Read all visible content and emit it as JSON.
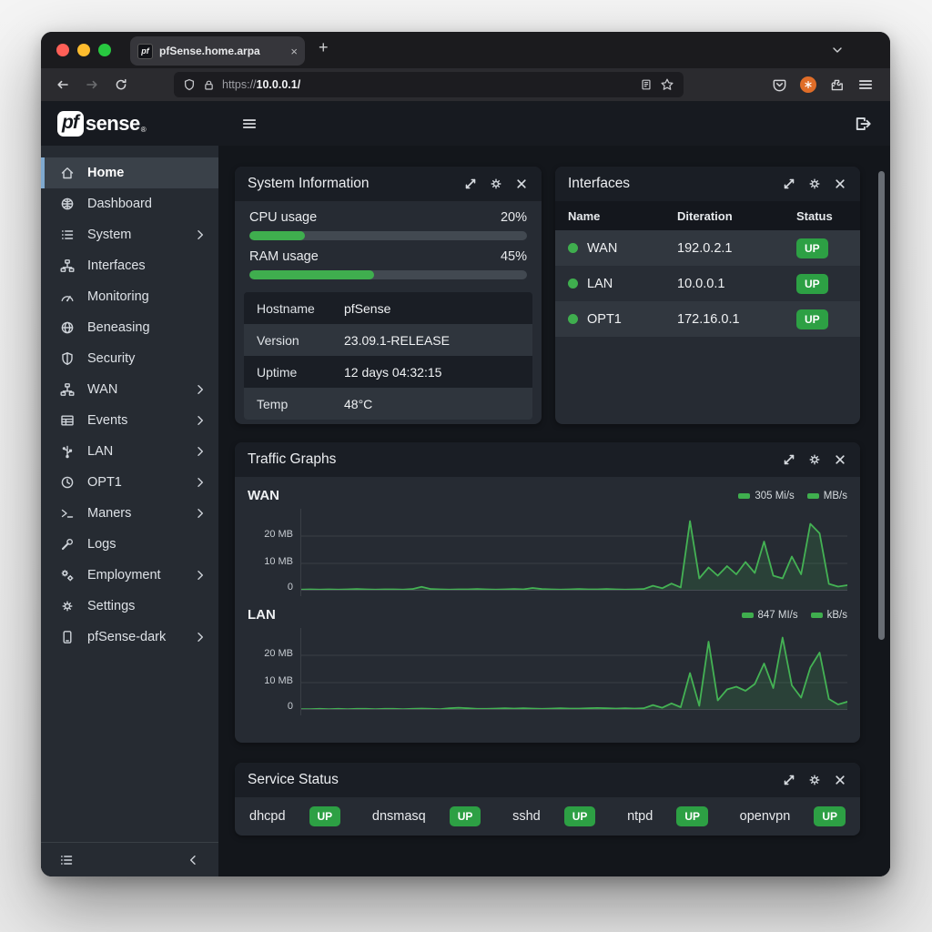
{
  "browser": {
    "tab": {
      "favicon_text": "pf",
      "title": "pfSense.home.arpa",
      "close": "×"
    },
    "new_tab": "+",
    "url": {
      "scheme": "https://",
      "host": "10.0.0.1/"
    },
    "colors": {
      "traffic_red": "#ff5f57",
      "traffic_yellow": "#febc2e",
      "traffic_green": "#28c840",
      "extension_badge": "#e06d28"
    }
  },
  "app": {
    "logo": {
      "pf": "pf",
      "rest": "sense",
      "reg": "®"
    }
  },
  "sidebar": {
    "items": [
      {
        "label": "Home",
        "icon": "home",
        "chevron": false,
        "active": true
      },
      {
        "label": "Dashboard",
        "icon": "dashboard",
        "chevron": false
      },
      {
        "label": "System",
        "icon": "system-list",
        "chevron": true
      },
      {
        "label": "Interfaces",
        "icon": "sitemap",
        "chevron": false
      },
      {
        "label": "Monitoring",
        "icon": "monitoring",
        "chevron": false
      },
      {
        "label": "Beneasing",
        "icon": "globe",
        "chevron": false
      },
      {
        "label": "Security",
        "icon": "shield",
        "chevron": false
      },
      {
        "label": "WAN",
        "icon": "sitemap",
        "chevron": true
      },
      {
        "label": "Events",
        "icon": "table",
        "chevron": true
      },
      {
        "label": "LAN",
        "icon": "usb",
        "chevron": true
      },
      {
        "label": "OPT1",
        "icon": "clock",
        "chevron": true
      },
      {
        "label": "Maners",
        "icon": "terminal",
        "chevron": true
      },
      {
        "label": "Logs",
        "icon": "wrench",
        "chevron": false
      },
      {
        "label": "Employment",
        "icon": "gears",
        "chevron": true
      },
      {
        "label": "Settings",
        "icon": "gear",
        "chevron": false
      },
      {
        "label": "pfSense-dark",
        "icon": "mobile",
        "chevron": true
      }
    ]
  },
  "panels": {
    "system_information": {
      "title": "System Information",
      "metrics": [
        {
          "label": "CPU usage",
          "value": "20%",
          "pct": 20
        },
        {
          "label": "RAM usage",
          "value": "45%",
          "pct": 45
        }
      ],
      "table": [
        {
          "label": "Hostname",
          "value": "pfSense"
        },
        {
          "label": "Version",
          "value": "23.09.1-RELEASE"
        },
        {
          "label": "Uptime",
          "value": "12 days 04:32:15"
        },
        {
          "label": "Temp",
          "value": "48°C"
        }
      ]
    },
    "interfaces": {
      "title": "Interfaces",
      "columns": [
        "Name",
        "Diteration",
        "Status"
      ],
      "rows": [
        {
          "name": "WAN",
          "address": "192.0.2.1",
          "status": "UP"
        },
        {
          "name": "LAN",
          "address": "10.0.0.1",
          "status": "UP"
        },
        {
          "name": "OPT1",
          "address": "172.16.0.1",
          "status": "UP"
        }
      ]
    },
    "traffic": {
      "title": "Traffic Graphs"
    },
    "services": {
      "title": "Service Status",
      "items": [
        {
          "name": "dhcpd",
          "status": "UP"
        },
        {
          "name": "dnsmasq",
          "status": "UP"
        },
        {
          "name": "sshd",
          "status": "UP"
        },
        {
          "name": "ntpd",
          "status": "UP"
        },
        {
          "name": "openvpn",
          "status": "UP"
        }
      ]
    }
  },
  "chart_data": [
    {
      "type": "line",
      "name": "WAN",
      "legend": [
        {
          "label": "305 Mi/s"
        },
        {
          "label": "MB/s"
        }
      ],
      "y_ticks": [
        "20 MB",
        "10 MB",
        "0"
      ],
      "ylabel": "MB",
      "ylim": [
        0,
        30
      ],
      "grid_values": [
        20,
        10
      ],
      "line_color": "#44b254",
      "fill_color": "rgba(68,178,84,0.16)",
      "values": [
        0.4,
        0.5,
        0.4,
        0.5,
        0.4,
        0.5,
        0.6,
        0.5,
        0.4,
        0.5,
        0.5,
        0.4,
        0.6,
        1.4,
        0.6,
        0.5,
        0.4,
        0.5,
        0.5,
        0.6,
        0.5,
        0.4,
        0.5,
        0.6,
        0.5,
        1.0,
        0.6,
        0.5,
        0.4,
        0.5,
        0.6,
        0.5,
        0.5,
        0.6,
        0.5,
        0.4,
        0.5,
        0.6,
        1.8,
        0.9,
        2.6,
        1.2,
        25.5,
        4.5,
        8.5,
        5.5,
        9.0,
        6.0,
        10.5,
        6.5,
        18.0,
        5.5,
        4.5,
        12.5,
        6.0,
        24.5,
        21.0,
        2.5,
        1.5,
        2.0
      ]
    },
    {
      "type": "line",
      "name": "LAN",
      "legend": [
        {
          "label": "847 MI/s"
        },
        {
          "label": "kB/s"
        }
      ],
      "y_ticks": [
        "20 MB",
        "10 MB",
        "0"
      ],
      "ylabel": "MB",
      "ylim": [
        0,
        30
      ],
      "grid_values": [
        20,
        10
      ],
      "line_color": "#44b254",
      "fill_color": "rgba(68,178,84,0.16)",
      "values": [
        0.3,
        0.3,
        0.4,
        0.3,
        0.4,
        0.3,
        0.4,
        0.4,
        0.3,
        0.4,
        0.4,
        0.3,
        0.4,
        0.5,
        0.4,
        0.3,
        0.6,
        0.8,
        0.6,
        0.4,
        0.4,
        0.5,
        0.6,
        0.5,
        0.6,
        0.5,
        0.4,
        0.5,
        0.6,
        0.5,
        0.5,
        0.6,
        0.7,
        0.6,
        0.5,
        0.6,
        0.5,
        0.6,
        1.8,
        0.8,
        2.4,
        1.0,
        13.5,
        1.5,
        25.0,
        3.5,
        7.5,
        8.5,
        7.0,
        9.5,
        17.0,
        8.0,
        26.5,
        9.0,
        4.5,
        15.5,
        21.0,
        4.0,
        2.0,
        3.0
      ]
    }
  ],
  "ui": {
    "panel_controls": [
      "expand",
      "gear",
      "close"
    ],
    "status_green": "#2da044",
    "accent_blue": "#7fa9cf"
  }
}
